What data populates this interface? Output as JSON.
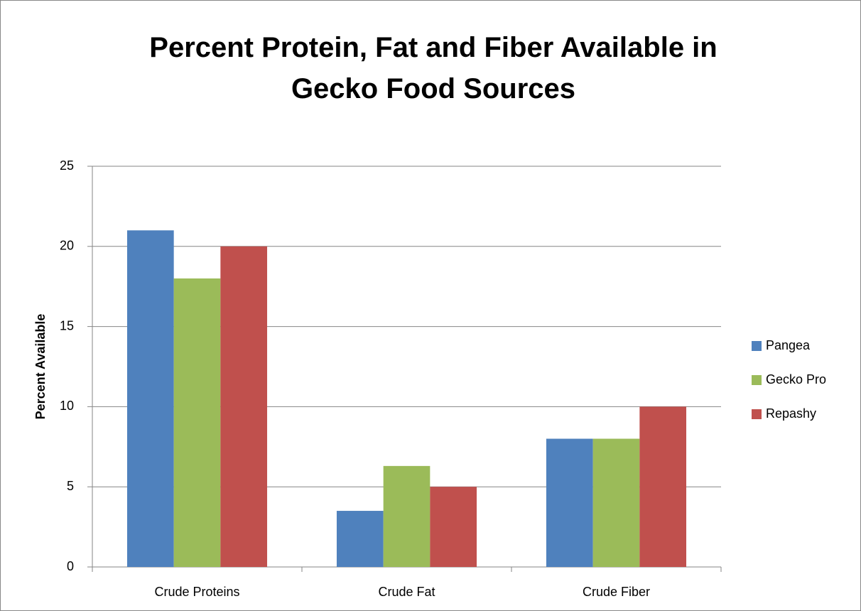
{
  "chart_data": {
    "type": "bar",
    "title": "Percent Protein, Fat and Fiber Available in Gecko Food Sources",
    "y_label": "Percent Available",
    "categories": [
      "Crude Proteins",
      "Crude Fat",
      "Crude Fiber"
    ],
    "series": [
      {
        "name": "Pangea",
        "color": "#4f81bd",
        "values": [
          21,
          3.5,
          8
        ]
      },
      {
        "name": "Gecko Pro",
        "color": "#9bbb59",
        "values": [
          18,
          6.3,
          8
        ]
      },
      {
        "name": "Repashy",
        "color": "#c0504d",
        "values": [
          20,
          5,
          10
        ]
      }
    ],
    "ylim": [
      0,
      25
    ],
    "yticks": [
      0,
      5,
      10,
      15,
      20,
      25
    ],
    "grid": true,
    "legend": "right"
  }
}
